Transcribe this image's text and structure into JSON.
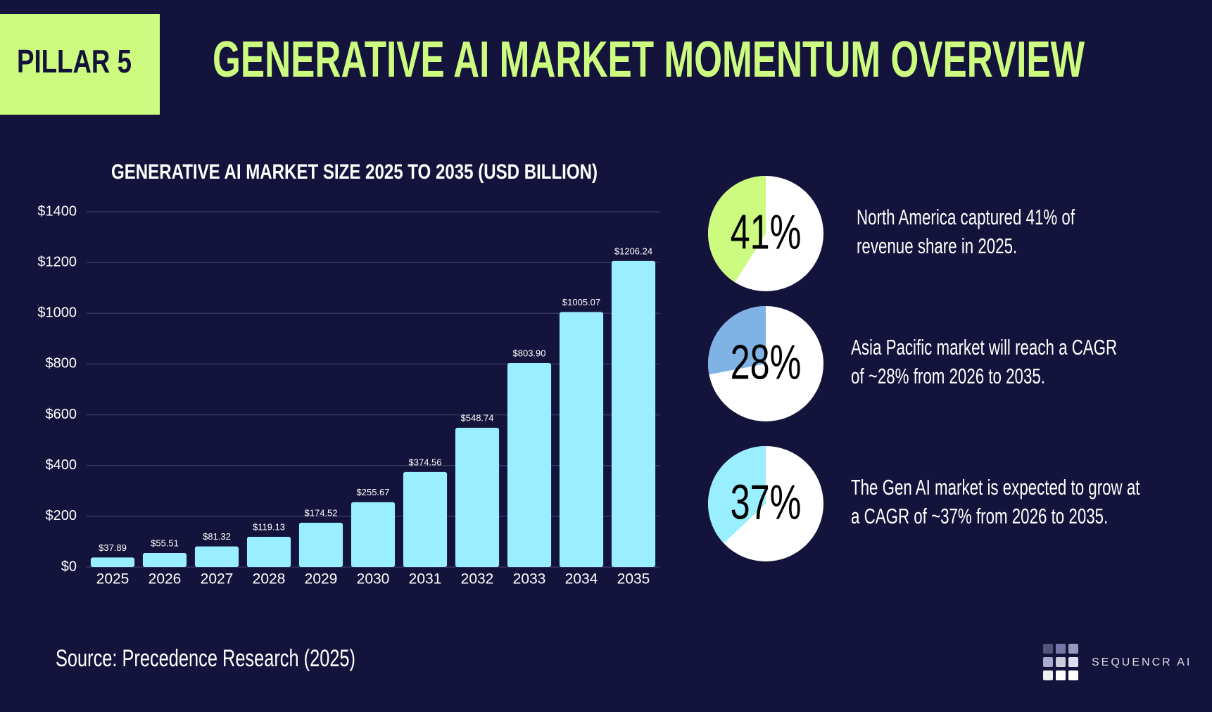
{
  "header": {
    "badge": "PILLAR 5",
    "title": "GENERATIVE AI MARKET MOMENTUM OVERVIEW"
  },
  "chart_data": [
    {
      "type": "bar",
      "title": "GENERATIVE AI MARKET SIZE 2025 TO 2035 (USD BILLION)",
      "categories": [
        "2025",
        "2026",
        "2027",
        "2028",
        "2029",
        "2030",
        "2031",
        "2032",
        "2033",
        "2034",
        "2035"
      ],
      "values": [
        37.89,
        55.51,
        81.32,
        119.13,
        174.52,
        255.67,
        374.56,
        548.74,
        803.9,
        1005.07,
        1206.24
      ],
      "value_labels": [
        "$37.89",
        "$55.51",
        "$81.32",
        "$119.13",
        "$174.52",
        "$255.67",
        "$374.56",
        "$548.74",
        "$803.90",
        "$1005.07",
        "$1206.24"
      ],
      "color": "#99eeff",
      "ylim": [
        0,
        1400
      ],
      "yticks": [
        {
          "value": 0,
          "label": "$0"
        },
        {
          "value": 200,
          "label": "$200"
        },
        {
          "value": 400,
          "label": "$400"
        },
        {
          "value": 600,
          "label": "$600"
        },
        {
          "value": 800,
          "label": "$800"
        },
        {
          "value": 1000,
          "label": "$1000"
        },
        {
          "value": 1200,
          "label": "$1200"
        },
        {
          "value": 1400,
          "label": "$1400"
        }
      ],
      "grid": true
    },
    {
      "type": "pie",
      "values": [
        41
      ],
      "value_labels": [
        "41%"
      ],
      "color": "#ccfb80",
      "annotation": [
        "North America captured 41% of",
        "revenue share in 2025."
      ]
    },
    {
      "type": "pie",
      "values": [
        28
      ],
      "value_labels": [
        "28%"
      ],
      "color": "#7fb2e5",
      "annotation": [
        "Asia Pacific market will reach a CAGR",
        "of ~28% from 2026 to 2035."
      ]
    },
    {
      "type": "pie",
      "values": [
        37
      ],
      "value_labels": [
        "37%"
      ],
      "color": "#99eeff",
      "annotation": [
        "The Gen AI market is expected to grow at",
        "a CAGR of ~37% from 2026 to 2035."
      ]
    }
  ],
  "source": "Source: Precedence Research (2025)",
  "logo": "SEQUENCR AI"
}
